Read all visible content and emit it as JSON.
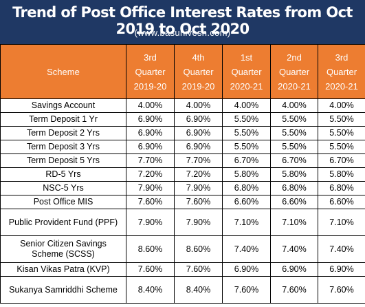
{
  "header": {
    "title": "Trend of Post Office Interest Rates from Oct 2019 to Oct 2020",
    "website": "(www.basunivesh.com)"
  },
  "table": {
    "columns": [
      "Scheme",
      "3rd Quarter 2019-20",
      "4th Quarter 2019-20",
      "1st Quarter 2020-21",
      "2nd Quarter 2020-21",
      "3rd Quarter 2020-21"
    ],
    "rows": [
      {
        "scheme": "Savings Account",
        "rates": [
          "4.00%",
          "4.00%",
          "4.00%",
          "4.00%",
          "4.00%"
        ]
      },
      {
        "scheme": "Term Deposit 1 Yr",
        "rates": [
          "6.90%",
          "6.90%",
          "5.50%",
          "5.50%",
          "5.50%"
        ]
      },
      {
        "scheme": "Term Deposit 2 Yrs",
        "rates": [
          "6.90%",
          "6.90%",
          "5.50%",
          "5.50%",
          "5.50%"
        ]
      },
      {
        "scheme": "Term Deposit 3 Yrs",
        "rates": [
          "6.90%",
          "6.90%",
          "5.50%",
          "5.50%",
          "5.50%"
        ]
      },
      {
        "scheme": "Term Deposit 5 Yrs",
        "rates": [
          "7.70%",
          "7.70%",
          "6.70%",
          "6.70%",
          "6.70%"
        ]
      },
      {
        "scheme": "RD-5 Yrs",
        "rates": [
          "7.20%",
          "7.20%",
          "5.80%",
          "5.80%",
          "5.80%"
        ]
      },
      {
        "scheme": "NSC-5 Yrs",
        "rates": [
          "7.90%",
          "7.90%",
          "6.80%",
          "6.80%",
          "6.80%"
        ]
      },
      {
        "scheme": "Post Office MIS",
        "rates": [
          "7.60%",
          "7.60%",
          "6.60%",
          "6.60%",
          "6.60%"
        ]
      },
      {
        "scheme": "Public Provident Fund (PPF)",
        "rates": [
          "7.90%",
          "7.90%",
          "7.10%",
          "7.10%",
          "7.10%"
        ]
      },
      {
        "scheme": "Senior Citizen Savings Scheme (SCSS)",
        "rates": [
          "8.60%",
          "8.60%",
          "7.40%",
          "7.40%",
          "7.40%"
        ]
      },
      {
        "scheme": "Kisan Vikas Patra (KVP)",
        "rates": [
          "7.60%",
          "7.60%",
          "6.90%",
          "6.90%",
          "6.90%"
        ]
      },
      {
        "scheme": "Sukanya Samriddhi Scheme",
        "rates": [
          "8.40%",
          "8.40%",
          "7.60%",
          "7.60%",
          "7.60%"
        ]
      }
    ]
  },
  "colors": {
    "banner_background": "#1f3864",
    "header_background": "#ed7d31",
    "header_text": "#ffffff"
  }
}
